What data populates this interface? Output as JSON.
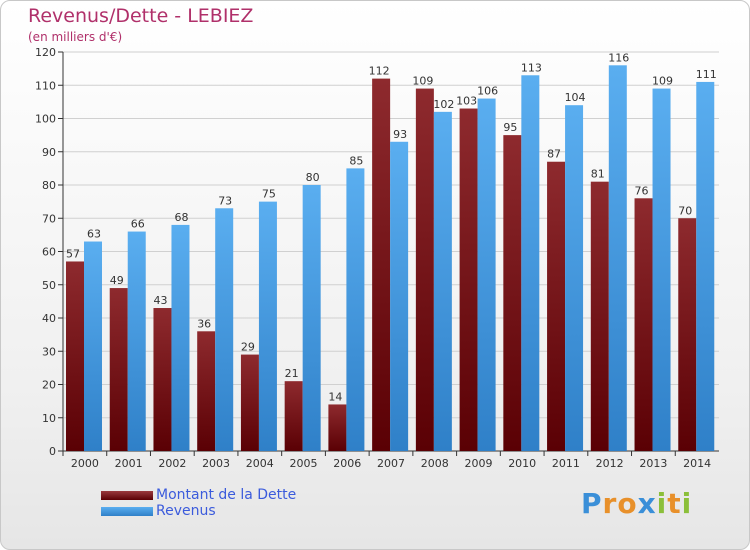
{
  "header": {
    "title": "Revenus/Dette - LEBIEZ",
    "subtitle": "(en milliers d'€)"
  },
  "colors": {
    "debt": "#7a1418",
    "revenue": "#4aa0e8",
    "title": "#b0306a",
    "legend_text": "#3b5bdc"
  },
  "legend": {
    "items": [
      {
        "label": "Montant de la Dette",
        "color": "#6a0f14"
      },
      {
        "label": "Revenus",
        "color": "#4aa0e8"
      }
    ]
  },
  "logo": {
    "text": "Proxiti",
    "letters": [
      {
        "ch": "P",
        "color": "#3a8fd8"
      },
      {
        "ch": "r",
        "color": "#e8902a"
      },
      {
        "ch": "o",
        "color": "#e8902a"
      },
      {
        "ch": "x",
        "color": "#3a8fd8"
      },
      {
        "ch": "i",
        "color": "#8bbf3a"
      },
      {
        "ch": "t",
        "color": "#e8902a"
      },
      {
        "ch": "i",
        "color": "#8bbf3a"
      }
    ]
  },
  "chart_data": {
    "type": "bar",
    "title": "Revenus/Dette - LEBIEZ",
    "subtitle": "(en milliers d'€)",
    "categories": [
      "2000",
      "2001",
      "2002",
      "2003",
      "2004",
      "2005",
      "2006",
      "2007",
      "2008",
      "2009",
      "2010",
      "2011",
      "2012",
      "2013",
      "2014"
    ],
    "series": [
      {
        "name": "Montant de la Dette",
        "values": [
          57,
          49,
          43,
          36,
          29,
          21,
          14,
          112,
          109,
          103,
          95,
          87,
          81,
          76,
          70
        ]
      },
      {
        "name": "Revenus",
        "values": [
          63,
          66,
          68,
          73,
          75,
          80,
          85,
          93,
          102,
          106,
          113,
          104,
          116,
          109,
          111
        ]
      }
    ],
    "ylim": [
      0,
      120
    ],
    "yticks": [
      0,
      10,
      20,
      30,
      40,
      50,
      60,
      70,
      80,
      90,
      100,
      110,
      120
    ],
    "grid": true,
    "legend_position": "bottom-left"
  }
}
